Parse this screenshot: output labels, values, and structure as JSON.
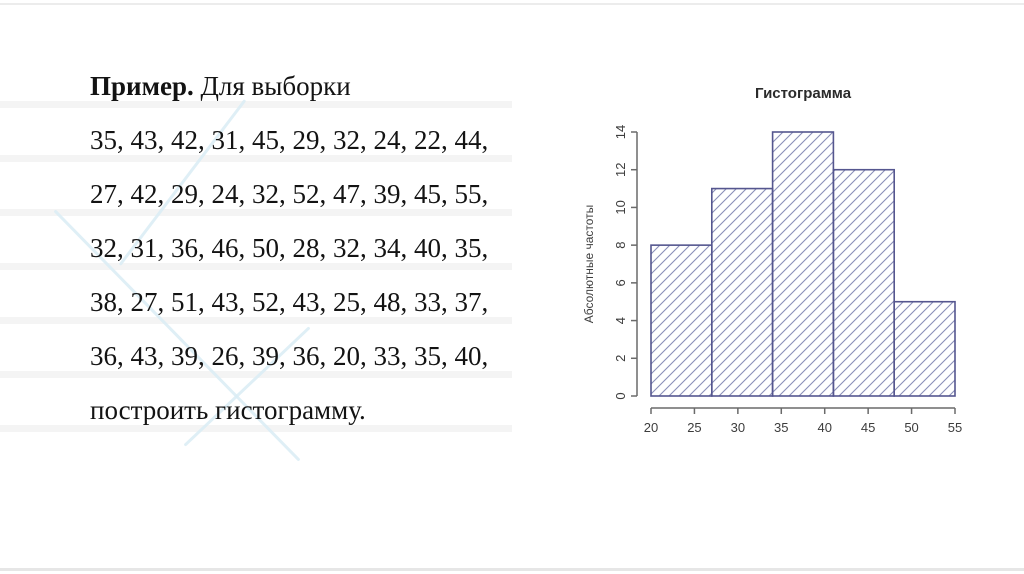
{
  "slide": {
    "heading_bold": "Пример.",
    "heading_rest": " Для выборки",
    "sample_lines": [
      "35, 43, 42, 31, 45, 29, 32, 24, 22, 44,",
      "27, 42, 29, 24, 32, 52, 47, 39, 45, 55,",
      "32, 31, 36, 46, 50, 28, 32, 34, 40, 35,",
      "38, 27, 51, 43, 52, 43, 25, 48, 33, 37,",
      "36, 43, 39, 26, 39, 36, 20, 33, 35, 40,"
    ],
    "closing_line": "построить гистограмму."
  },
  "chart_data": {
    "type": "bar",
    "title": "Гистограмма",
    "xlabel": "",
    "ylabel": "Абсолютные частоты",
    "bin_edges": [
      20,
      27,
      34,
      41,
      48,
      55
    ],
    "values": [
      8,
      11,
      14,
      12,
      5
    ],
    "x_ticks": [
      20,
      25,
      30,
      35,
      40,
      45,
      50,
      55
    ],
    "y_ticks": [
      0,
      2,
      4,
      6,
      8,
      10,
      12,
      14
    ],
    "xlim": [
      20,
      55
    ],
    "ylim": [
      0,
      14
    ],
    "grid": false,
    "legend": "none",
    "hatch_style": "diagonal-45",
    "hatch_color": "#8a8fb8",
    "bar_border_color": "#55568f",
    "axis_color": "#6a6a6a",
    "tick_text_color": "#3d3d3d"
  }
}
